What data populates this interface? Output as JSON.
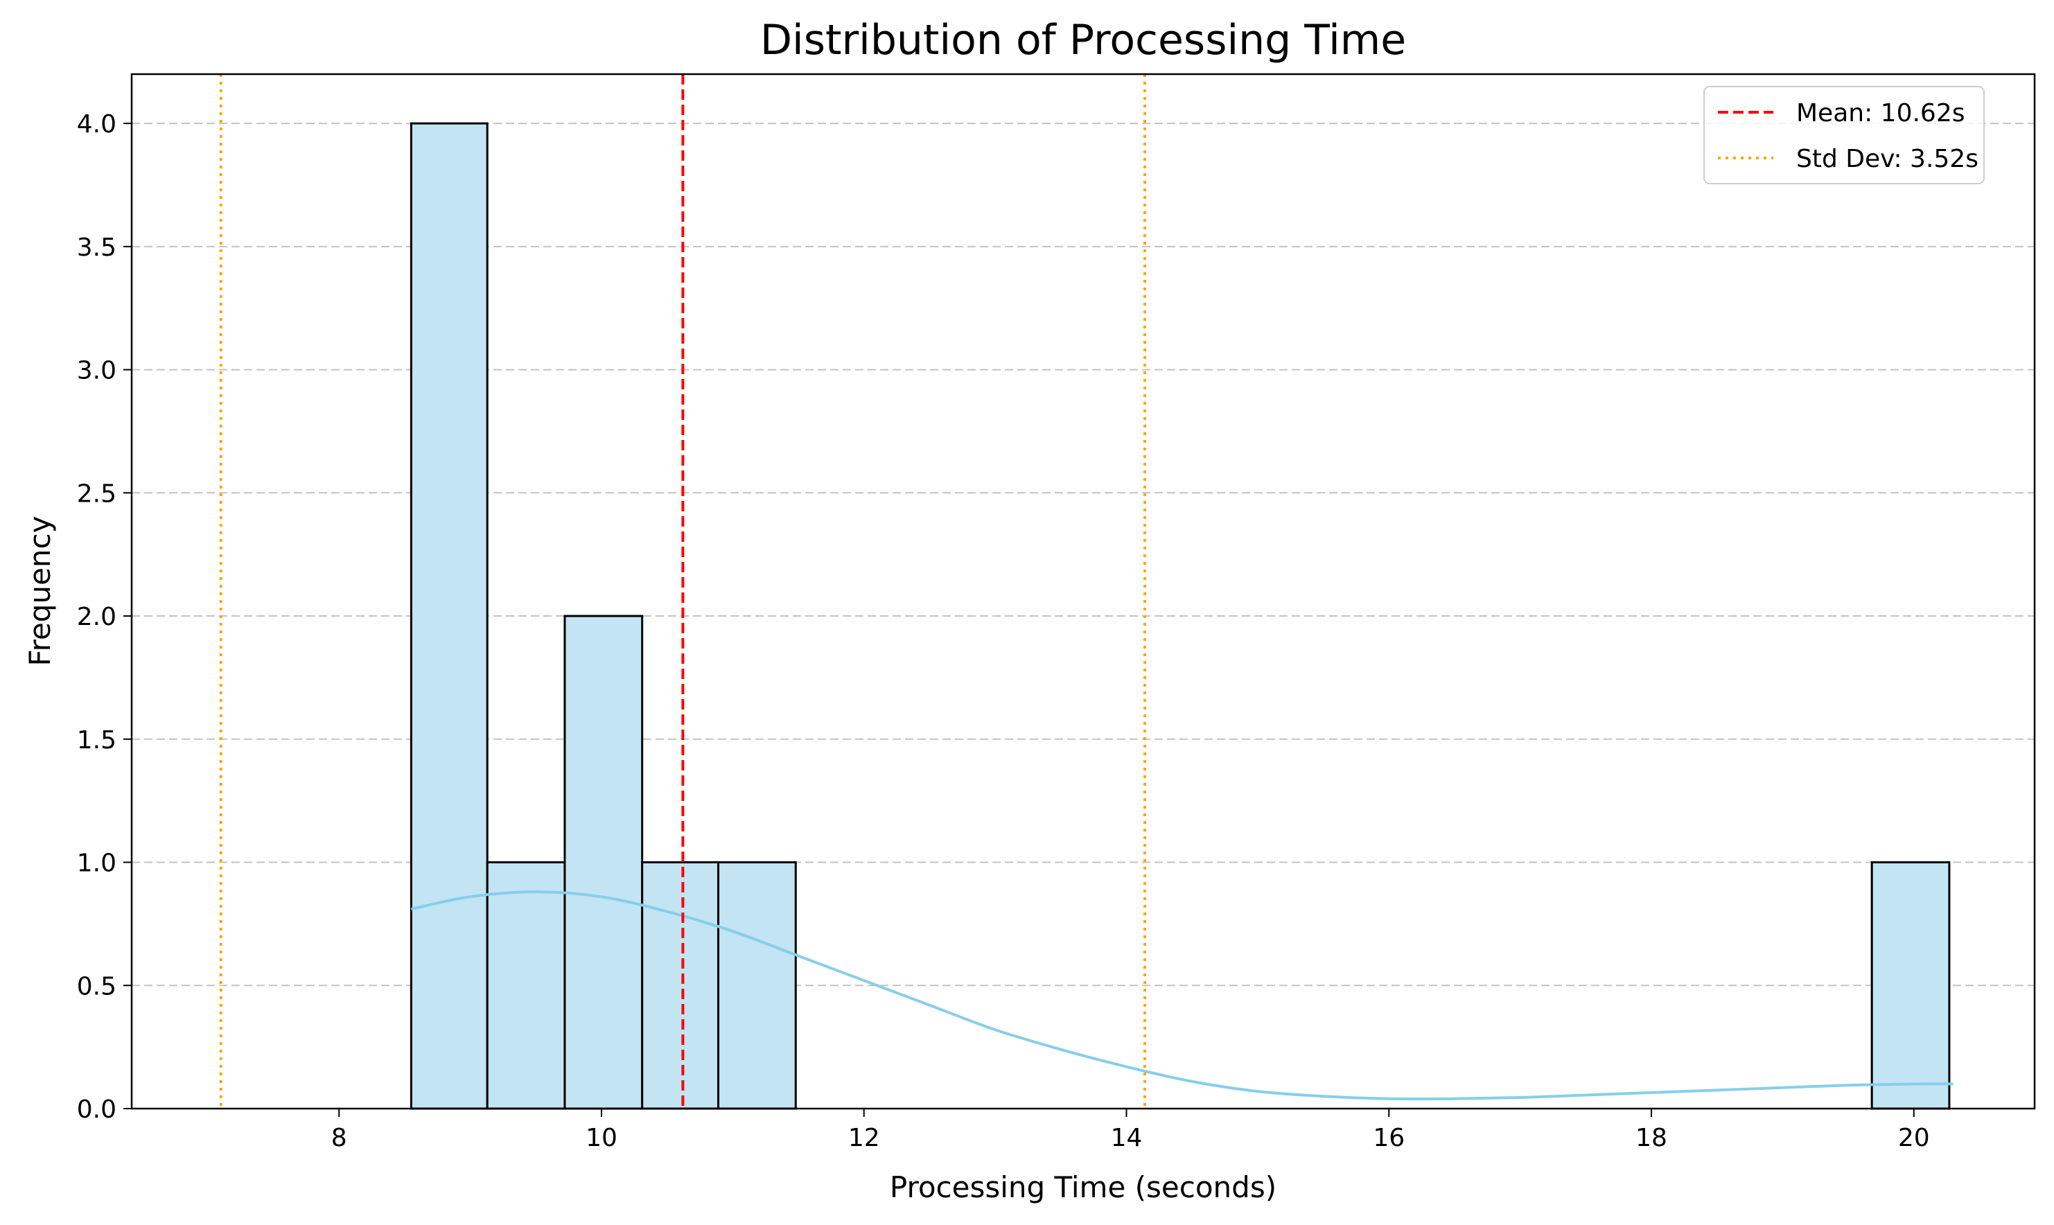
{
  "chart_data": {
    "type": "bar",
    "title": "Distribution of Processing Time",
    "xlabel": "Processing Time (seconds)",
    "ylabel": "Frequency",
    "xlim": [
      6.42,
      20.92
    ],
    "ylim": [
      0,
      4.2
    ],
    "xticks": [
      8,
      10,
      12,
      14,
      16,
      18,
      20
    ],
    "yticks": [
      0.0,
      0.5,
      1.0,
      1.5,
      2.0,
      2.5,
      3.0,
      3.5,
      4.0
    ],
    "xtick_labels": [
      "8",
      "10",
      "12",
      "14",
      "16",
      "18",
      "20"
    ],
    "ytick_labels": [
      "0.0",
      "0.5",
      "1.0",
      "1.5",
      "2.0",
      "2.5",
      "3.0",
      "3.5",
      "4.0"
    ],
    "bin_edges": [
      8.55,
      9.13,
      9.72,
      10.31,
      10.89,
      11.48,
      12.06,
      12.65,
      13.24,
      13.82,
      14.41,
      15.0,
      15.58,
      16.17,
      16.75,
      17.34,
      17.93,
      18.51,
      19.1,
      19.68,
      20.27
    ],
    "counts": [
      4,
      1,
      2,
      1,
      1,
      0,
      0,
      0,
      0,
      0,
      0,
      0,
      0,
      0,
      0,
      0,
      0,
      0,
      0,
      1
    ],
    "kde": {
      "x": [
        8.55,
        9.0,
        9.5,
        10.0,
        10.5,
        11.0,
        11.5,
        12.0,
        12.5,
        13.0,
        13.5,
        14.0,
        14.5,
        15.0,
        15.5,
        16.0,
        16.5,
        17.0,
        17.5,
        18.0,
        18.5,
        19.0,
        19.5,
        20.0,
        20.3
      ],
      "y": [
        0.81,
        0.86,
        0.88,
        0.86,
        0.8,
        0.72,
        0.62,
        0.52,
        0.42,
        0.32,
        0.24,
        0.17,
        0.11,
        0.07,
        0.05,
        0.04,
        0.04,
        0.045,
        0.055,
        0.065,
        0.075,
        0.085,
        0.095,
        0.1,
        0.1
      ],
      "color": "#87ceeb"
    },
    "mean": {
      "value": 10.62,
      "label": "Mean: 10.62s",
      "color": "#ff0000"
    },
    "std": {
      "value": 3.52,
      "lower": 7.1,
      "upper": 14.14,
      "label": "Std Dev: 3.52s",
      "color": "#ffa500"
    },
    "bar_color": "#c2e4f3",
    "legend_position": "top-right",
    "grid": "y-dashed"
  }
}
